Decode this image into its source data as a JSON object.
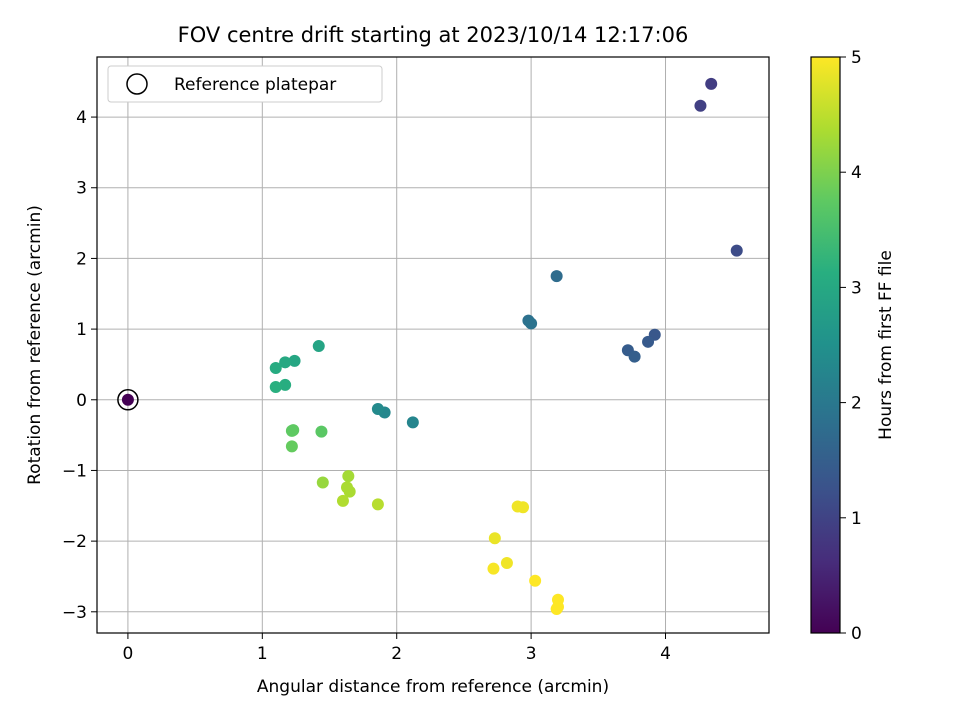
{
  "chart_data": {
    "type": "scatter",
    "title": "FOV centre drift starting at 2023/10/14 12:17:06",
    "xlabel": "Angular distance from reference (arcmin)",
    "ylabel": "Rotation from reference (arcmin)",
    "xlim": [
      -0.23,
      4.77
    ],
    "ylim": [
      -3.3,
      4.85
    ],
    "xticks": [
      0,
      1,
      2,
      3,
      4
    ],
    "xtick_labels": [
      "0",
      "1",
      "2",
      "3",
      "4"
    ],
    "yticks": [
      -3,
      -2,
      -1,
      0,
      1,
      2,
      3,
      4
    ],
    "ytick_labels": [
      "−3",
      "−2",
      "−1",
      "0",
      "1",
      "2",
      "3",
      "4"
    ],
    "grid": true,
    "legend": {
      "placement": "top-left",
      "entries": [
        "Reference platepar"
      ]
    },
    "reference_point": {
      "x": 0,
      "y": 0
    },
    "colorbar": {
      "label": "Hours from first FF file",
      "range": [
        0,
        5
      ],
      "ticks": [
        0,
        1,
        2,
        3,
        4,
        5
      ],
      "tick_labels": [
        "0",
        "1",
        "2",
        "3",
        "4",
        "5"
      ],
      "colormap": "viridis"
    },
    "points": [
      {
        "x": 0.0,
        "y": 0.0,
        "c": 0.0
      },
      {
        "x": 4.34,
        "y": 4.47,
        "c": 0.9
      },
      {
        "x": 4.26,
        "y": 4.16,
        "c": 0.95
      },
      {
        "x": 4.53,
        "y": 2.11,
        "c": 1.15
      },
      {
        "x": 3.92,
        "y": 0.92,
        "c": 1.35
      },
      {
        "x": 3.87,
        "y": 0.82,
        "c": 1.4
      },
      {
        "x": 3.72,
        "y": 0.7,
        "c": 1.45
      },
      {
        "x": 3.77,
        "y": 0.61,
        "c": 1.5
      },
      {
        "x": 3.19,
        "y": 1.75,
        "c": 1.75
      },
      {
        "x": 2.98,
        "y": 1.12,
        "c": 1.85
      },
      {
        "x": 3.0,
        "y": 1.08,
        "c": 1.9
      },
      {
        "x": 2.12,
        "y": -0.32,
        "c": 2.25
      },
      {
        "x": 1.91,
        "y": -0.18,
        "c": 2.3
      },
      {
        "x": 1.86,
        "y": -0.13,
        "c": 2.35
      },
      {
        "x": 1.42,
        "y": 0.76,
        "c": 2.9
      },
      {
        "x": 1.24,
        "y": 0.55,
        "c": 2.95
      },
      {
        "x": 1.17,
        "y": 0.53,
        "c": 3.0
      },
      {
        "x": 1.1,
        "y": 0.45,
        "c": 3.05
      },
      {
        "x": 1.17,
        "y": 0.21,
        "c": 3.1
      },
      {
        "x": 1.1,
        "y": 0.18,
        "c": 3.15
      },
      {
        "x": 1.44,
        "y": -0.45,
        "c": 3.7
      },
      {
        "x": 1.23,
        "y": -0.43,
        "c": 3.75
      },
      {
        "x": 1.22,
        "y": -0.44,
        "c": 3.75
      },
      {
        "x": 1.22,
        "y": -0.66,
        "c": 3.8
      },
      {
        "x": 1.45,
        "y": -1.17,
        "c": 4.2
      },
      {
        "x": 1.64,
        "y": -1.08,
        "c": 4.3
      },
      {
        "x": 1.63,
        "y": -1.24,
        "c": 4.35
      },
      {
        "x": 1.65,
        "y": -1.3,
        "c": 4.35
      },
      {
        "x": 1.6,
        "y": -1.43,
        "c": 4.4
      },
      {
        "x": 1.86,
        "y": -1.48,
        "c": 4.45
      },
      {
        "x": 2.73,
        "y": -1.96,
        "c": 4.85
      },
      {
        "x": 2.9,
        "y": -1.51,
        "c": 4.9
      },
      {
        "x": 2.94,
        "y": -1.52,
        "c": 4.9
      },
      {
        "x": 2.82,
        "y": -2.31,
        "c": 4.9
      },
      {
        "x": 2.72,
        "y": -2.39,
        "c": 4.95
      },
      {
        "x": 3.03,
        "y": -2.56,
        "c": 5.0
      },
      {
        "x": 3.2,
        "y": -2.83,
        "c": 5.0
      },
      {
        "x": 3.2,
        "y": -2.93,
        "c": 5.0
      },
      {
        "x": 3.19,
        "y": -2.96,
        "c": 5.0
      }
    ]
  }
}
